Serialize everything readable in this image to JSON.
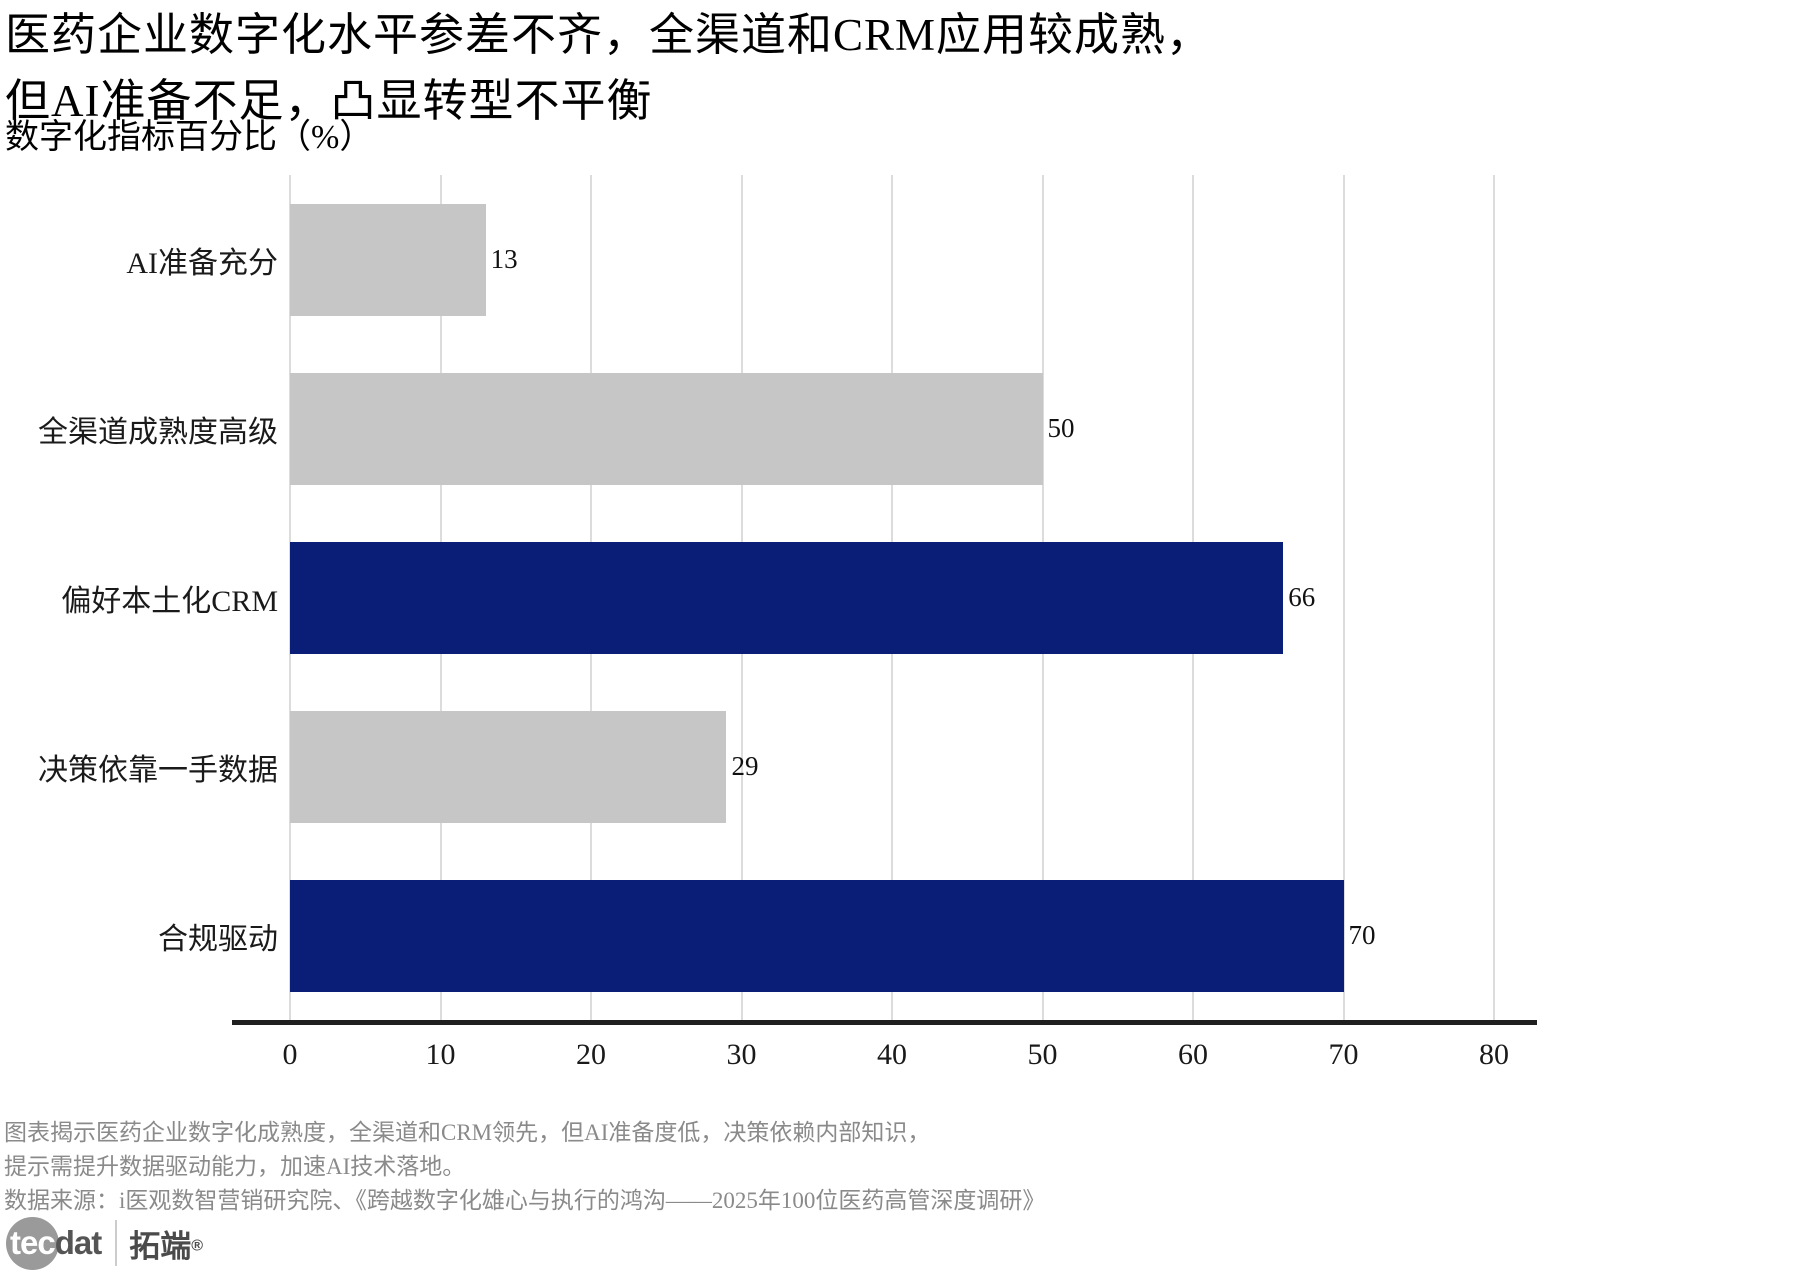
{
  "title": {
    "line1": "医药企业数字化水平参差不齐，全渠道和CRM应用较成熟，",
    "line2": "但AI准备不足，凸显转型不平衡",
    "subtitle": "数字化指标百分比（%）"
  },
  "chart_data": {
    "type": "bar",
    "orientation": "horizontal",
    "title": "医药企业数字化水平参差不齐，全渠道和CRM应用较成熟，但AI准备不足，凸显转型不平衡",
    "subtitle_axis_label": "数字化指标百分比（%）",
    "categories": [
      "AI准备充分",
      "全渠道成熟度高级",
      "偏好本土化CRM",
      "决策依靠一手数据",
      "合规驱动"
    ],
    "values": [
      13,
      50,
      66,
      29,
      70
    ],
    "bar_colors": [
      "#c6c6c6",
      "#c6c6c6",
      "#0a1e78",
      "#c6c6c6",
      "#0a1e78"
    ],
    "xlim": [
      0,
      80
    ],
    "xticks": [
      0,
      10,
      20,
      30,
      40,
      50,
      60,
      70,
      80
    ],
    "grid": true,
    "legend": false
  },
  "footer": {
    "note_line1": "图表揭示医药企业数字化成熟度，全渠道和CRM领先，但AI准备度低，决策依赖内部知识，",
    "note_line2": "提示需提升数据驱动能力，加速AI技术落地。",
    "source": "数据来源：i医观数智营销研究院、《跨越数字化雄心与执行的鸿沟——2025年100位医药高管深度调研》"
  },
  "logo": {
    "tec": "tec",
    "dat": "dat",
    "cn": "拓端",
    "reg": "®"
  },
  "colors": {
    "bar_grey": "#c6c6c6",
    "bar_navy": "#0a1e78",
    "gridline": "#dcdcdc",
    "axis": "#1f1f1f",
    "footer_text": "#8a8a8a"
  }
}
